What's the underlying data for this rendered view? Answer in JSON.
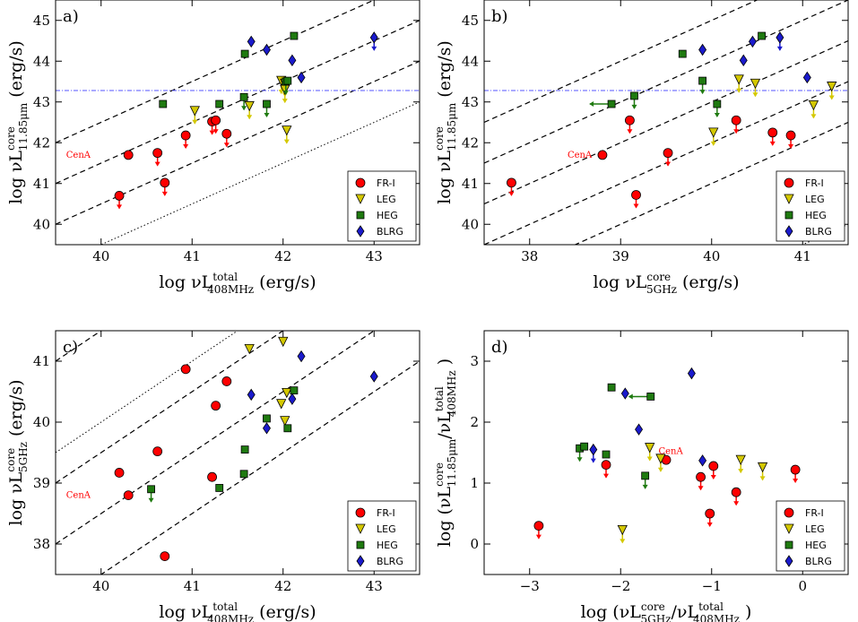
{
  "chart_data": [
    {
      "type": "scatter",
      "panel": "a)",
      "xlabel_main": "log νL",
      "xlabel_sup": "total",
      "xlabel_sub": "408MHz",
      "xlabel_unit": "(erg/s)",
      "ylabel_main": "log νL",
      "ylabel_sup": "core",
      "ylabel_sub": "11.85μm",
      "ylabel_unit": "(erg/s)",
      "xlim": [
        39.5,
        43.5
      ],
      "ylim": [
        39.5,
        45.5
      ],
      "xticks": [
        "40",
        "41",
        "42",
        "43"
      ],
      "yticks": [
        "40",
        "41",
        "42",
        "43",
        "44",
        "45"
      ],
      "hline": 43.28,
      "dashed_offsets": [
        0.5,
        1.5,
        2.5
      ],
      "dotted_offsets": [
        -0.5
      ],
      "annotation": {
        "text": "CenA",
        "x": 39.75,
        "y": 41.7
      },
      "legend": [
        "FR-I",
        "LEG",
        "HEG",
        "BLRG"
      ],
      "series": [
        {
          "name": "FR-I",
          "points": [
            {
              "x": 40.2,
              "y": 40.7,
              "ul": true
            },
            {
              "x": 40.3,
              "y": 41.7,
              "ul": false
            },
            {
              "x": 40.62,
              "y": 41.75,
              "ul": true
            },
            {
              "x": 40.7,
              "y": 41.02,
              "ul": true
            },
            {
              "x": 40.93,
              "y": 42.18,
              "ul": true
            },
            {
              "x": 41.22,
              "y": 42.52,
              "ul": true
            },
            {
              "x": 41.26,
              "y": 42.55,
              "ul": true
            },
            {
              "x": 41.38,
              "y": 42.22,
              "ul": true
            }
          ]
        },
        {
          "name": "LEG",
          "points": [
            {
              "x": 41.03,
              "y": 42.78,
              "ul": true
            },
            {
              "x": 41.63,
              "y": 42.9,
              "ul": true
            },
            {
              "x": 41.98,
              "y": 43.52,
              "ul": true
            },
            {
              "x": 42.02,
              "y": 43.45,
              "ul": true
            },
            {
              "x": 42.02,
              "y": 43.3,
              "ul": true
            },
            {
              "x": 42.04,
              "y": 42.3,
              "ul": true
            }
          ]
        },
        {
          "name": "HEG",
          "points": [
            {
              "x": 40.68,
              "y": 42.95,
              "ul": false
            },
            {
              "x": 41.3,
              "y": 42.95,
              "ul": false
            },
            {
              "x": 41.57,
              "y": 43.12,
              "ul": true
            },
            {
              "x": 41.58,
              "y": 44.18,
              "ul": false
            },
            {
              "x": 41.82,
              "y": 42.95,
              "ul": true
            },
            {
              "x": 42.03,
              "y": 43.5,
              "ul": true
            },
            {
              "x": 42.05,
              "y": 43.52,
              "ul": false
            },
            {
              "x": 42.12,
              "y": 44.62,
              "ul": false
            }
          ]
        },
        {
          "name": "BLRG",
          "points": [
            {
              "x": 41.65,
              "y": 44.48,
              "ul": false
            },
            {
              "x": 41.82,
              "y": 44.28,
              "ul": false
            },
            {
              "x": 42.1,
              "y": 44.02,
              "ul": false
            },
            {
              "x": 42.2,
              "y": 43.6,
              "ul": false
            },
            {
              "x": 43.0,
              "y": 44.58,
              "ul": true
            }
          ]
        }
      ]
    },
    {
      "type": "scatter",
      "panel": "b)",
      "xlabel_main": "log νL",
      "xlabel_sup": "core",
      "xlabel_sub": "5GHz",
      "xlabel_unit": "(erg/s)",
      "ylabel_main": "log νL",
      "ylabel_sup": "core",
      "ylabel_sub": "11.85μm",
      "ylabel_unit": "(erg/s)",
      "xlim": [
        37.5,
        41.5
      ],
      "ylim": [
        39.5,
        45.5
      ],
      "xticks": [
        "38",
        "39",
        "40",
        "41"
      ],
      "yticks": [
        "40",
        "41",
        "42",
        "43",
        "44",
        "45"
      ],
      "hline": 43.28,
      "dashed_offsets": [
        1.0,
        2.0,
        3.0,
        4.0,
        5.0
      ],
      "dotted_offsets": [
        -1.5
      ],
      "annotation": {
        "text": "CenA",
        "x": 38.55,
        "y": 41.7
      },
      "legend": [
        "FR-I",
        "LEG",
        "HEG",
        "BLRG"
      ],
      "series": [
        {
          "name": "FR-I",
          "points": [
            {
              "x": 37.8,
              "y": 41.02,
              "ul": true
            },
            {
              "x": 38.8,
              "y": 41.7,
              "ul": false
            },
            {
              "x": 39.1,
              "y": 42.55,
              "ul": true
            },
            {
              "x": 39.17,
              "y": 40.72,
              "ul": true
            },
            {
              "x": 39.52,
              "y": 41.75,
              "ul": true
            },
            {
              "x": 40.27,
              "y": 42.55,
              "ul": true
            },
            {
              "x": 40.67,
              "y": 42.25,
              "ul": true
            },
            {
              "x": 40.87,
              "y": 42.18,
              "ul": true
            }
          ]
        },
        {
          "name": "LEG",
          "points": [
            {
              "x": 40.02,
              "y": 42.25,
              "ul": true
            },
            {
              "x": 40.3,
              "y": 43.55,
              "ul": true
            },
            {
              "x": 40.48,
              "y": 43.45,
              "ul": true
            },
            {
              "x": 41.12,
              "y": 42.92,
              "ul": true
            },
            {
              "x": 41.32,
              "y": 43.38,
              "ul": true
            }
          ]
        },
        {
          "name": "HEG",
          "points": [
            {
              "x": 38.9,
              "y": 42.95,
              "ul": false,
              "xul": true
            },
            {
              "x": 39.15,
              "y": 43.15,
              "ul": true
            },
            {
              "x": 39.68,
              "y": 44.18,
              "ul": false
            },
            {
              "x": 39.9,
              "y": 43.52,
              "ul": true
            },
            {
              "x": 40.06,
              "y": 42.95,
              "ul": true
            },
            {
              "x": 40.55,
              "y": 44.62,
              "ul": false
            }
          ]
        },
        {
          "name": "BLRG",
          "points": [
            {
              "x": 39.9,
              "y": 44.28,
              "ul": false
            },
            {
              "x": 40.35,
              "y": 44.02,
              "ul": false
            },
            {
              "x": 40.45,
              "y": 44.48,
              "ul": false
            },
            {
              "x": 40.75,
              "y": 44.58,
              "ul": true
            },
            {
              "x": 41.05,
              "y": 43.6,
              "ul": false
            }
          ]
        }
      ]
    },
    {
      "type": "scatter",
      "panel": "c)",
      "xlabel_main": "log νL",
      "xlabel_sup": "total",
      "xlabel_sub": "408MHz",
      "xlabel_unit": "(erg/s)",
      "ylabel_main": "log νL",
      "ylabel_sup": "core",
      "ylabel_sub": "5GHz",
      "ylabel_unit": "(erg/s)",
      "xlim": [
        39.5,
        43.5
      ],
      "ylim": [
        37.5,
        41.5
      ],
      "xticks": [
        "40",
        "41",
        "42",
        "43"
      ],
      "yticks": [
        "38",
        "39",
        "40",
        "41"
      ],
      "hline": null,
      "dashed_offsets": [
        1.5,
        -0.5,
        -1.5,
        -2.5
      ],
      "dotted_offsets": [
        0.0
      ],
      "annotation": {
        "text": "CenA",
        "x": 39.75,
        "y": 38.8
      },
      "legend": [
        "FR-I",
        "LEG",
        "HEG",
        "BLRG"
      ],
      "series": [
        {
          "name": "FR-I",
          "points": [
            {
              "x": 40.2,
              "y": 39.17,
              "ul": false
            },
            {
              "x": 40.3,
              "y": 38.8,
              "ul": false
            },
            {
              "x": 40.62,
              "y": 39.52,
              "ul": false
            },
            {
              "x": 40.7,
              "y": 37.8,
              "ul": false
            },
            {
              "x": 40.93,
              "y": 40.87,
              "ul": false
            },
            {
              "x": 41.22,
              "y": 39.1,
              "ul": false
            },
            {
              "x": 41.26,
              "y": 40.27,
              "ul": false
            },
            {
              "x": 41.38,
              "y": 40.67,
              "ul": false
            }
          ]
        },
        {
          "name": "LEG",
          "points": [
            {
              "x": 41.63,
              "y": 41.2,
              "ul": false
            },
            {
              "x": 41.98,
              "y": 40.3,
              "ul": false
            },
            {
              "x": 42.0,
              "y": 41.32,
              "ul": false
            },
            {
              "x": 42.02,
              "y": 40.02,
              "ul": false
            },
            {
              "x": 42.04,
              "y": 40.48,
              "ul": false
            }
          ]
        },
        {
          "name": "HEG",
          "points": [
            {
              "x": 40.55,
              "y": 38.9,
              "ul": true
            },
            {
              "x": 41.3,
              "y": 38.92,
              "ul": false
            },
            {
              "x": 41.57,
              "y": 39.15,
              "ul": false
            },
            {
              "x": 41.58,
              "y": 39.55,
              "ul": false
            },
            {
              "x": 41.82,
              "y": 40.06,
              "ul": false
            },
            {
              "x": 42.05,
              "y": 39.9,
              "ul": false
            },
            {
              "x": 42.12,
              "y": 40.52,
              "ul": false
            }
          ]
        },
        {
          "name": "BLRG",
          "points": [
            {
              "x": 41.65,
              "y": 40.45,
              "ul": false
            },
            {
              "x": 41.82,
              "y": 39.9,
              "ul": false
            },
            {
              "x": 42.1,
              "y": 40.38,
              "ul": false
            },
            {
              "x": 42.2,
              "y": 41.08,
              "ul": false
            },
            {
              "x": 43.0,
              "y": 40.75,
              "ul": false
            }
          ]
        }
      ]
    },
    {
      "type": "scatter",
      "panel": "d)",
      "xlabel_main": "log (νL",
      "xlabel_sup": "core",
      "xlabel_sub": "5GHz",
      "xlabel_mid": "/νL",
      "xlabel_sup2": "total",
      "xlabel_sub2": "408MHz",
      "xlabel_unit": ")",
      "ylabel_main": "log (νL",
      "ylabel_sup": "core",
      "ylabel_sub": "11.85μm",
      "ylabel_mid": "/νL",
      "ylabel_sup2": "total",
      "ylabel_sub2": "408MHz",
      "ylabel_unit": ")",
      "xlim": [
        -3.5,
        0.5
      ],
      "ylim": [
        -0.5,
        3.5
      ],
      "xticks": [
        "−3",
        "−2",
        "−1",
        "0"
      ],
      "yticks": [
        "0",
        "1",
        "2",
        "3"
      ],
      "hline": null,
      "dashed_offsets": [],
      "dotted_offsets": [],
      "annotation": {
        "text": "CenA",
        "x": -1.45,
        "y": 1.52
      },
      "legend": [
        "FR-I",
        "LEG",
        "HEG",
        "BLRG"
      ],
      "series": [
        {
          "name": "FR-I",
          "points": [
            {
              "x": -2.9,
              "y": 0.3,
              "ul": true
            },
            {
              "x": -2.16,
              "y": 1.3,
              "ul": true
            },
            {
              "x": -1.5,
              "y": 1.38,
              "ul": false
            },
            {
              "x": -1.12,
              "y": 1.1,
              "ul": true
            },
            {
              "x": -1.02,
              "y": 0.5,
              "ul": true
            },
            {
              "x": -0.98,
              "y": 1.28,
              "ul": true
            },
            {
              "x": -0.73,
              "y": 0.85,
              "ul": true
            },
            {
              "x": -0.08,
              "y": 1.22,
              "ul": true
            }
          ]
        },
        {
          "name": "LEG",
          "points": [
            {
              "x": -1.98,
              "y": 0.23,
              "ul": true
            },
            {
              "x": -1.68,
              "y": 1.58,
              "ul": true
            },
            {
              "x": -1.56,
              "y": 1.4,
              "ul": true
            },
            {
              "x": -0.68,
              "y": 1.38,
              "ul": true
            },
            {
              "x": -0.44,
              "y": 1.26,
              "ul": true
            }
          ]
        },
        {
          "name": "HEG",
          "points": [
            {
              "x": -2.45,
              "y": 1.57,
              "ul": true
            },
            {
              "x": -2.4,
              "y": 1.6,
              "ul": false
            },
            {
              "x": -2.16,
              "y": 1.47,
              "ul": false
            },
            {
              "x": -2.1,
              "y": 2.57,
              "ul": false
            },
            {
              "x": -1.73,
              "y": 1.12,
              "ul": true
            },
            {
              "x": -1.67,
              "y": 2.42,
              "ul": false,
              "xul": true
            }
          ]
        },
        {
          "name": "BLRG",
          "points": [
            {
              "x": -2.3,
              "y": 1.55,
              "ul": true
            },
            {
              "x": -1.95,
              "y": 2.47,
              "ul": false
            },
            {
              "x": -1.8,
              "y": 1.88,
              "ul": false
            },
            {
              "x": -1.22,
              "y": 2.8,
              "ul": false
            },
            {
              "x": -1.1,
              "y": 1.37,
              "ul": false
            }
          ]
        }
      ]
    }
  ],
  "colors": {
    "FR-I": "#ff0000",
    "LEG": "#d4c800",
    "HEG": "#1f7a10",
    "BLRG": "#1a1acc",
    "hline": "#5555ff",
    "frame": "#000000"
  }
}
